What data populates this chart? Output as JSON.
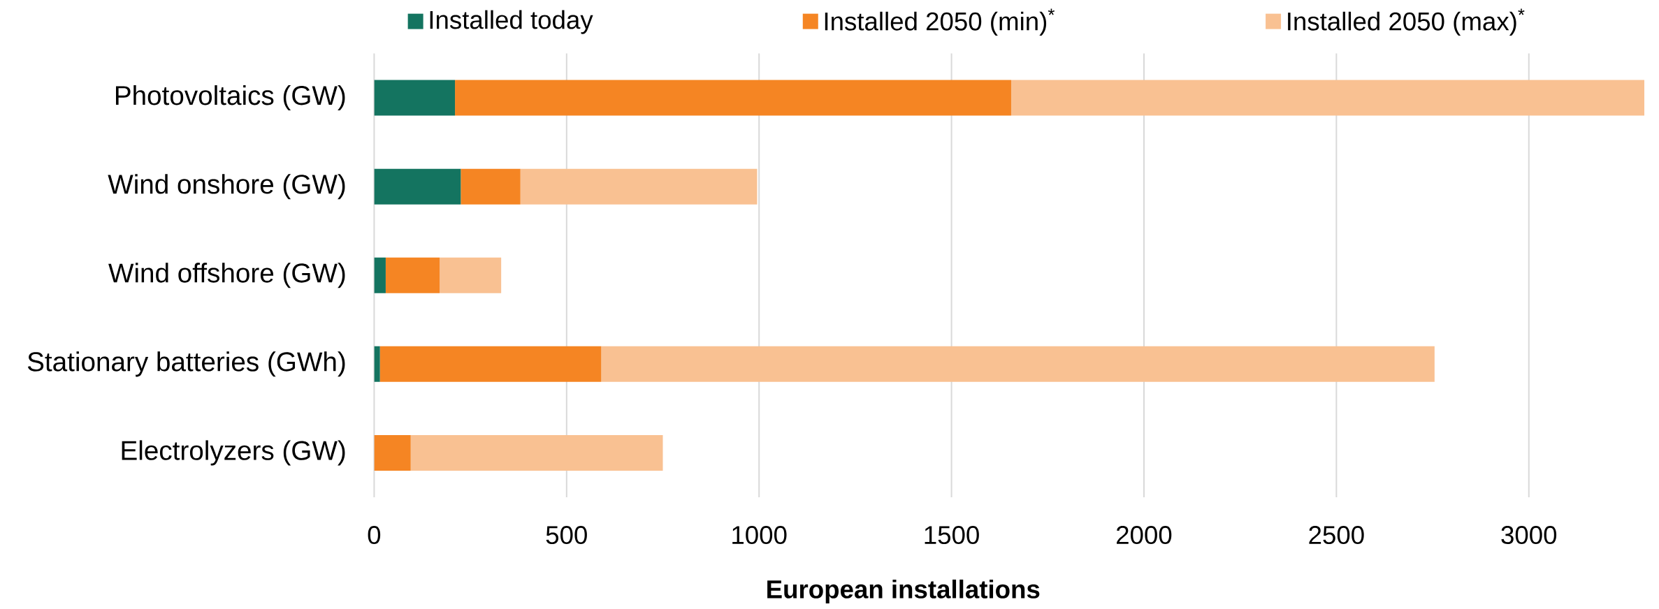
{
  "chart_data": {
    "type": "bar",
    "orientation": "horizontal",
    "stacked": true,
    "categories": [
      "Photovoltaics (GW)",
      "Wind onshore (GW)",
      "Wind offshore (GW)",
      "Stationary batteries (GWh)",
      "Electrolyzers (GW)"
    ],
    "series": [
      {
        "name": "Installed today",
        "color": "#147460",
        "values": [
          210,
          225,
          30,
          15,
          null
        ]
      },
      {
        "name": "Installed 2050 (min)$^{*}$",
        "color": "#f58523",
        "values": [
          1445,
          155,
          140,
          575,
          95
        ]
      },
      {
        "name": "Installed 2050 (max)$^{*}$",
        "color": "#f9c192",
        "values": [
          1645,
          615,
          160,
          2165,
          655
        ]
      }
    ],
    "xlabel": "European installations",
    "xlim": [
      0,
      3300
    ],
    "xticks": [
      0,
      500,
      1000,
      1500,
      2000,
      2500,
      3000
    ],
    "grid": "x",
    "legend": "top"
  }
}
